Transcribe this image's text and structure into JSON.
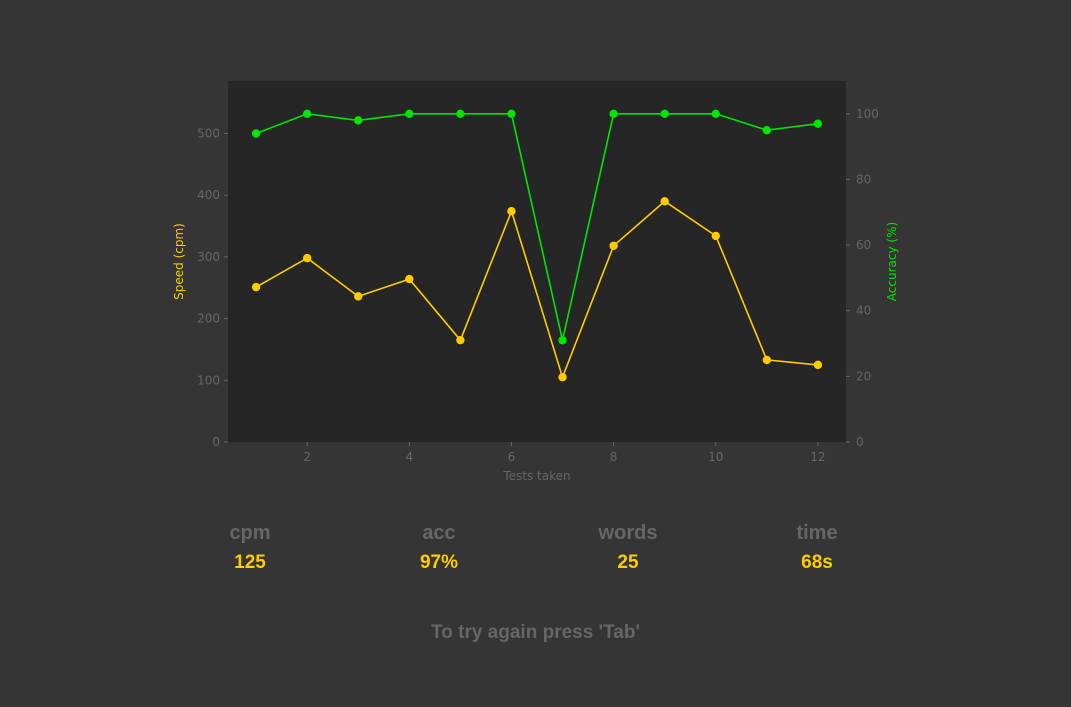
{
  "chart_data": {
    "type": "line",
    "xlabel": "Tests taken",
    "x": [
      1,
      2,
      3,
      4,
      5,
      6,
      7,
      8,
      9,
      10,
      11,
      12
    ],
    "xticks": [
      2,
      4,
      6,
      8,
      10,
      12
    ],
    "xlim": [
      0.45,
      12.55
    ],
    "series": [
      {
        "name": "Speed (cpm)",
        "axis": "left",
        "color": "#ffcc00",
        "values": [
          251,
          298,
          236,
          264,
          165,
          374,
          105,
          318,
          390,
          334,
          133,
          125
        ]
      },
      {
        "name": "Accuracy (%)",
        "axis": "right",
        "color": "#00e600",
        "values": [
          94,
          100,
          98,
          100,
          100,
          100,
          31,
          100,
          100,
          100,
          95,
          97
        ]
      }
    ],
    "y_left": {
      "label": "Speed (cpm)",
      "ticks": [
        0,
        100,
        200,
        300,
        400,
        500
      ],
      "lim": [
        0,
        585
      ],
      "color": "#ffcc00"
    },
    "y_right": {
      "label": "Accuracy (%)",
      "ticks": [
        0,
        20,
        40,
        60,
        80,
        100
      ],
      "lim": [
        0,
        110
      ],
      "color": "#00e600"
    },
    "grid": false,
    "background": "#262626",
    "tick_color": "#666666"
  },
  "stats": [
    {
      "label": "cpm",
      "value": "125"
    },
    {
      "label": "acc",
      "value": "97%"
    },
    {
      "label": "words",
      "value": "25"
    },
    {
      "label": "time",
      "value": "68s"
    }
  ],
  "footer": "To try again press 'Tab'"
}
